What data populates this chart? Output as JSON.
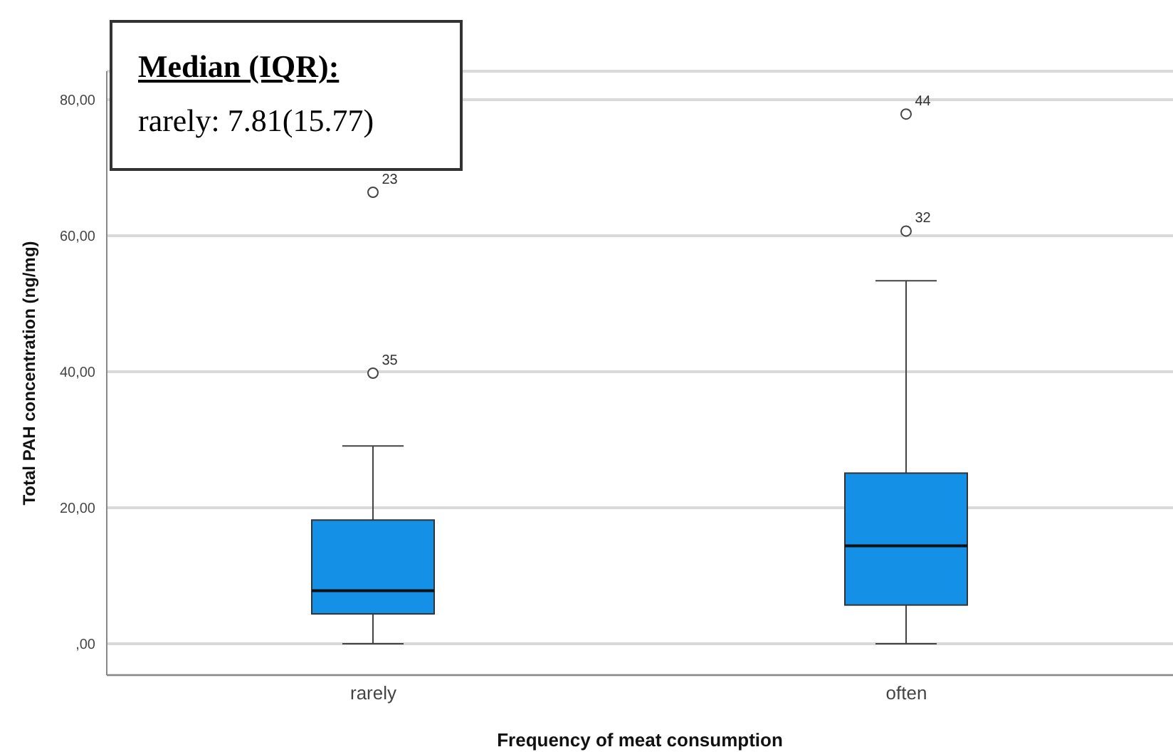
{
  "chart_data": {
    "type": "box",
    "xlabel": "Frequency of meat consumption",
    "ylabel": "Total PAH concentration (ng/mg)",
    "categories": [
      "rarely",
      "often"
    ],
    "color": "#1490e6",
    "boxes": [
      {
        "low": 0,
        "q1": 4.4,
        "median": 7.81,
        "q3": 18.2,
        "high": 29.1,
        "outliers": [
          39.8,
          66.4
        ]
      },
      {
        "low": 0,
        "q1": 5.7,
        "median": 14.4,
        "q3": 25.1,
        "high": 53.4,
        "outliers": [
          60.7,
          77.9
        ]
      }
    ],
    "ylim": [
      -4.6,
      84.2
    ],
    "yticks": [
      {
        "value": 0,
        "label": ",00"
      },
      {
        "value": 20,
        "label": "20,00"
      },
      {
        "value": 40,
        "label": "40,00"
      },
      {
        "value": 60,
        "label": "60,00"
      },
      {
        "value": 80,
        "label": "80,00"
      }
    ],
    "grid": "y",
    "annotations": [
      "Median (IQR):",
      "rarely: 7.81(15.77)",
      "35",
      "23",
      "32",
      "44"
    ]
  }
}
